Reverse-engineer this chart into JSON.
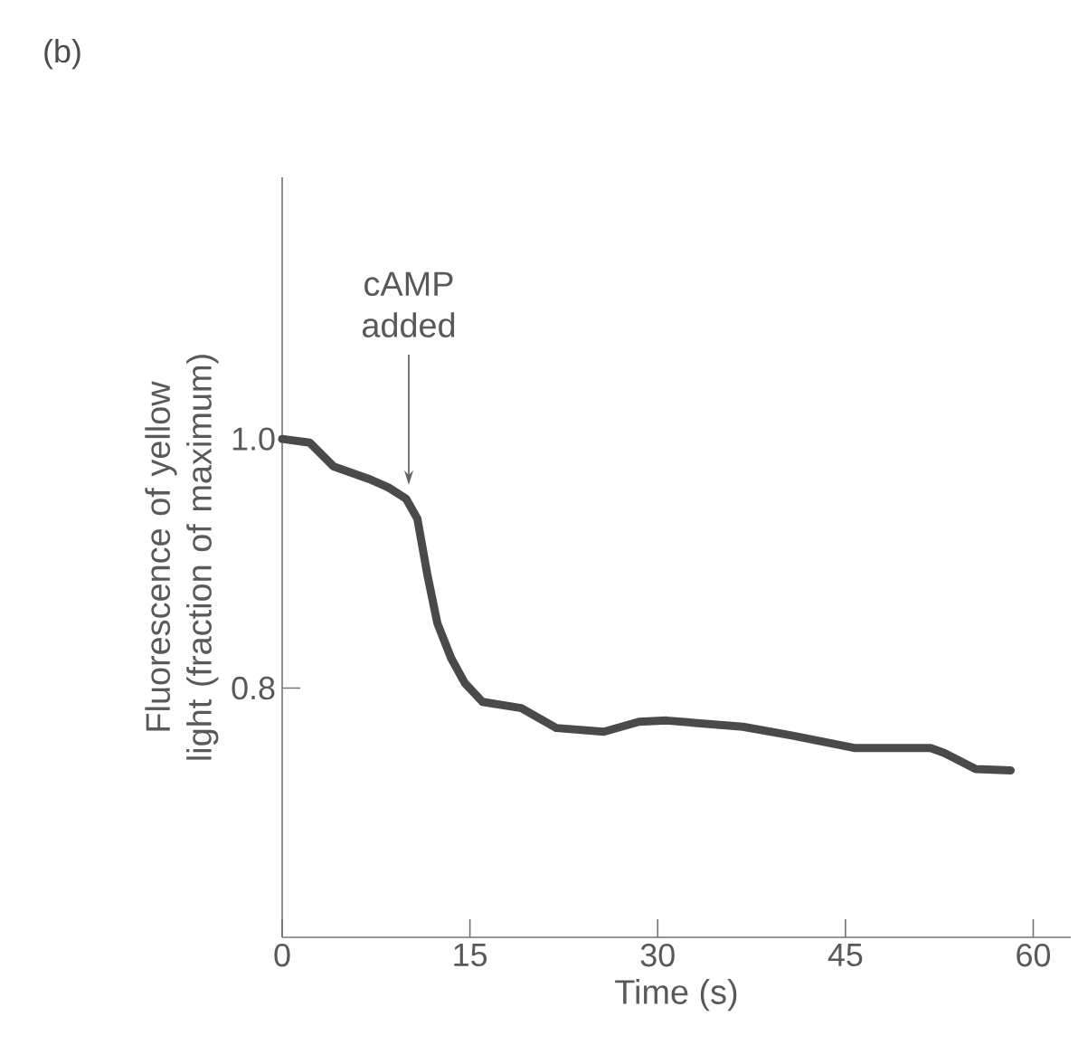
{
  "chart_data": {
    "type": "line",
    "xlabel": "Time (s)",
    "ylabel": "Fluorescence of yellow light (fraction of maximum)",
    "annotations": [
      "(b)",
      "cAMP added"
    ],
    "x": [
      0,
      2.2,
      4.1,
      6.9,
      8.5,
      9.9,
      10.8,
      11.6,
      12.4,
      13.5,
      14.6,
      16.0,
      19.1,
      21.9,
      25.7,
      28.5,
      30.7,
      36.8,
      40.7,
      45.7,
      51.8,
      52.9,
      55.4,
      58.2
    ],
    "series": [
      {
        "color": "#4a4a4a",
        "values": [
          1.0,
          0.997,
          0.978,
          0.968,
          0.961,
          0.952,
          0.936,
          0.891,
          0.852,
          0.824,
          0.804,
          0.789,
          0.784,
          0.768,
          0.765,
          0.773,
          0.774,
          0.769,
          0.762,
          0.752,
          0.752,
          0.748,
          0.735,
          0.734
        ]
      }
    ],
    "xlim": [
      0,
      63
    ],
    "ylim": [
      0.6,
      1.21
    ],
    "xticks": [
      0,
      15,
      30,
      45,
      60
    ],
    "yticks": [
      {
        "value": 0.8,
        "label": "0.8"
      },
      {
        "value": 1.0,
        "label": "1.0"
      }
    ]
  }
}
